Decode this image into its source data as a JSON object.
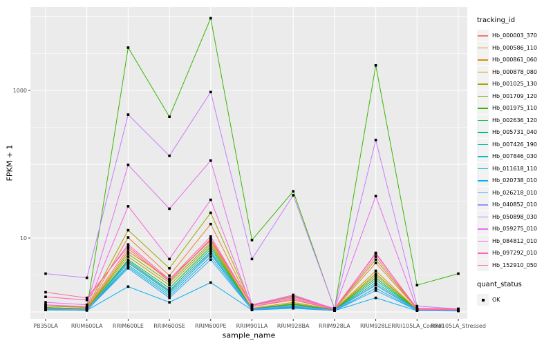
{
  "chart_data": {
    "type": "line",
    "title": "",
    "xlabel": "sample_name",
    "ylabel": "FPKM + 1",
    "y_scale": "log10",
    "ylim": [
      0.8,
      13500
    ],
    "y_labeled_ticks": [
      "10",
      "1000"
    ],
    "grid": true,
    "panel_bg": "#EBEBEB",
    "grid_color": "#FFFFFF",
    "tick_label_color": "#4D4D4D",
    "point_color": "#000000",
    "categories": [
      "PB350LA",
      "RRIM600LA",
      "RRIM600LE",
      "RRIM600SE",
      "RRIM600PE",
      "RRIM901LA",
      "RRIM928BA",
      "RRIM928LA",
      "RRIM928LE",
      "RRII105LA_Control",
      "RRII105LA_Stressed"
    ],
    "legend": {
      "title": "tracking_id",
      "position": "right"
    },
    "legend2": {
      "title": "quant_status",
      "items": [
        "OK"
      ],
      "marker": "black-square"
    },
    "series": [
      {
        "name": "Hb_000003_370",
        "color": "#F8766D",
        "values": [
          1.25,
          1.15,
          7.2,
          2.6,
          9.8,
          1.25,
          1.6,
          1.12,
          6.1,
          1.12,
          1.1
        ]
      },
      {
        "name": "Hb_000586_110",
        "color": "#EA8331",
        "values": [
          1.15,
          1.1,
          10.2,
          3.1,
          15.5,
          1.18,
          1.45,
          1.08,
          4.6,
          1.1,
          1.08
        ]
      },
      {
        "name": "Hb_000861_060",
        "color": "#D89000",
        "values": [
          1.15,
          1.1,
          6.6,
          2.8,
          9.2,
          1.12,
          1.35,
          1.07,
          3.6,
          1.08,
          1.06
        ]
      },
      {
        "name": "Hb_000878_080",
        "color": "#C09B00",
        "values": [
          1.12,
          1.08,
          5.6,
          2.3,
          8.1,
          1.1,
          1.28,
          1.06,
          3.1,
          1.07,
          1.06
        ]
      },
      {
        "name": "Hb_001025_130",
        "color": "#A3A500",
        "values": [
          1.2,
          1.15,
          12.8,
          3.9,
          22,
          1.22,
          1.65,
          1.1,
          5.1,
          1.1,
          1.08
        ]
      },
      {
        "name": "Hb_001709_120",
        "color": "#7CAE00",
        "values": [
          1.12,
          1.08,
          6.1,
          2.5,
          8.6,
          1.1,
          1.3,
          1.06,
          3.3,
          1.07,
          1.06
        ]
      },
      {
        "name": "Hb_001975_110",
        "color": "#39B600",
        "values": [
          1.15,
          1.1,
          3800,
          440,
          9500,
          9.4,
          43,
          1.1,
          2180,
          2.3,
          3.3
        ]
      },
      {
        "name": "Hb_002636_120",
        "color": "#00BB4E",
        "values": [
          1.1,
          1.07,
          5.1,
          2.1,
          7.6,
          1.1,
          1.26,
          1.06,
          2.9,
          1.06,
          1.05
        ]
      },
      {
        "name": "Hb_005731_040",
        "color": "#00BF7D",
        "values": [
          1.1,
          1.07,
          4.9,
          1.95,
          7.1,
          1.09,
          1.22,
          1.05,
          2.7,
          1.06,
          1.05
        ]
      },
      {
        "name": "Hb_007426_190",
        "color": "#00C1A3",
        "values": [
          1.08,
          1.06,
          4.6,
          1.85,
          6.6,
          1.08,
          1.2,
          1.05,
          2.5,
          1.06,
          1.05
        ]
      },
      {
        "name": "Hb_007846_030",
        "color": "#00BFC4",
        "values": [
          1.08,
          1.06,
          4.3,
          1.75,
          6.1,
          1.08,
          1.18,
          1.05,
          2.3,
          1.05,
          1.04
        ]
      },
      {
        "name": "Hb_011618_110",
        "color": "#00BAE0",
        "values": [
          1.07,
          1.05,
          4.1,
          1.65,
          5.6,
          1.07,
          1.16,
          1.04,
          2.1,
          1.05,
          1.04
        ]
      },
      {
        "name": "Hb_020738_010",
        "color": "#00B0F6",
        "values": [
          1.06,
          1.05,
          2.2,
          1.35,
          2.5,
          1.06,
          1.12,
          1.04,
          1.55,
          1.04,
          1.03
        ]
      },
      {
        "name": "Hb_026218_010",
        "color": "#35A2FF",
        "values": [
          1.07,
          1.05,
          3.9,
          1.55,
          5.1,
          1.07,
          1.14,
          1.04,
          1.95,
          1.05,
          1.04
        ]
      },
      {
        "name": "Hb_040852_010",
        "color": "#9590FF",
        "values": [
          1.1,
          1.07,
          4.7,
          1.9,
          6.3,
          1.09,
          1.2,
          1.05,
          2.35,
          1.06,
          1.05
        ]
      },
      {
        "name": "Hb_050898_030",
        "color": "#C77CFF",
        "values": [
          3.3,
          2.9,
          470,
          130,
          950,
          5.2,
          38,
          1.12,
          213,
          1.2,
          1.1
        ]
      },
      {
        "name": "Hb_059275_010",
        "color": "#E76BF3",
        "values": [
          1.35,
          1.25,
          98,
          25,
          112,
          1.25,
          1.7,
          1.1,
          37,
          1.1,
          1.06
        ]
      },
      {
        "name": "Hb_084812_010",
        "color": "#FA62DB",
        "values": [
          1.25,
          1.18,
          27,
          5.2,
          33,
          1.18,
          1.5,
          1.08,
          6.3,
          1.08,
          1.06
        ]
      },
      {
        "name": "Hb_097292_010",
        "color": "#FF62BC",
        "values": [
          1.6,
          1.45,
          8.2,
          2.75,
          10.5,
          1.22,
          1.62,
          1.1,
          6.2,
          1.1,
          1.07
        ]
      },
      {
        "name": "Hb_152910_050",
        "color": "#FF6A98",
        "values": [
          1.85,
          1.55,
          7.7,
          2.65,
          9.4,
          1.22,
          1.55,
          1.1,
          5.6,
          1.1,
          1.07
        ]
      }
    ]
  }
}
